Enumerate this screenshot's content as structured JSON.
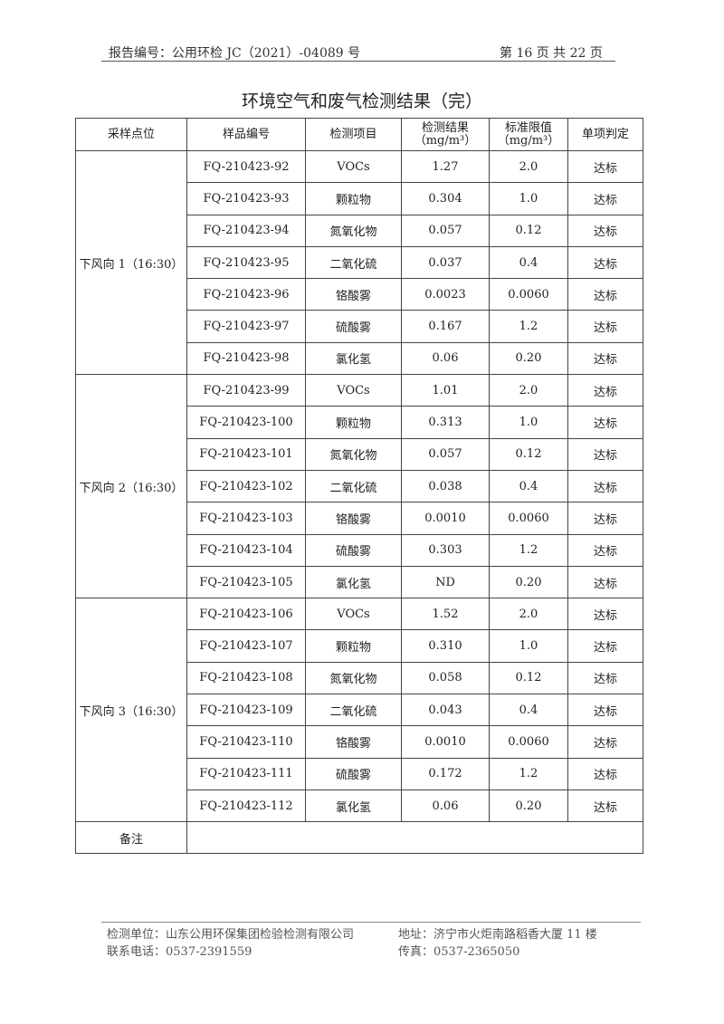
{
  "header": {
    "report_no": "报告编号：公用环检 JC（2021）-04089 号",
    "page": "第 16 页 共 22 页"
  },
  "title": "环境空气和废气检测结果（完）",
  "table": {
    "columns": [
      "采样点位",
      "样品编号",
      "检测项目",
      "检测结果",
      "（mg/m³）",
      "标准限值",
      "（mg/m³）",
      "单项判定"
    ],
    "groups": [
      {
        "location": "下风向 1（16:30）",
        "rows": [
          [
            "FQ-210423-92",
            "VOCs",
            "1.27",
            "2.0",
            "达标"
          ],
          [
            "FQ-210423-93",
            "颗粒物",
            "0.304",
            "1.0",
            "达标"
          ],
          [
            "FQ-210423-94",
            "氮氧化物",
            "0.057",
            "0.12",
            "达标"
          ],
          [
            "FQ-210423-95",
            "二氧化硫",
            "0.037",
            "0.4",
            "达标"
          ],
          [
            "FQ-210423-96",
            "铬酸雾",
            "0.0023",
            "0.0060",
            "达标"
          ],
          [
            "FQ-210423-97",
            "硫酸雾",
            "0.167",
            "1.2",
            "达标"
          ],
          [
            "FQ-210423-98",
            "氯化氢",
            "0.06",
            "0.20",
            "达标"
          ]
        ]
      },
      {
        "location": "下风向 2（16:30）",
        "rows": [
          [
            "FQ-210423-99",
            "VOCs",
            "1.01",
            "2.0",
            "达标"
          ],
          [
            "FQ-210423-100",
            "颗粒物",
            "0.313",
            "1.0",
            "达标"
          ],
          [
            "FQ-210423-101",
            "氮氧化物",
            "0.057",
            "0.12",
            "达标"
          ],
          [
            "FQ-210423-102",
            "二氧化硫",
            "0.038",
            "0.4",
            "达标"
          ],
          [
            "FQ-210423-103",
            "铬酸雾",
            "0.0010",
            "0.0060",
            "达标"
          ],
          [
            "FQ-210423-104",
            "硫酸雾",
            "0.303",
            "1.2",
            "达标"
          ],
          [
            "FQ-210423-105",
            "氯化氢",
            "ND",
            "0.20",
            "达标"
          ]
        ]
      },
      {
        "location": "下风向 3（16:30）",
        "rows": [
          [
            "FQ-210423-106",
            "VOCs",
            "1.52",
            "2.0",
            "达标"
          ],
          [
            "FQ-210423-107",
            "颗粒物",
            "0.310",
            "1.0",
            "达标"
          ],
          [
            "FQ-210423-108",
            "氮氧化物",
            "0.058",
            "0.12",
            "达标"
          ],
          [
            "FQ-210423-109",
            "二氧化硫",
            "0.043",
            "0.4",
            "达标"
          ],
          [
            "FQ-210423-110",
            "铬酸雾",
            "0.0010",
            "0.0060",
            "达标"
          ],
          [
            "FQ-210423-111",
            "硫酸雾",
            "0.172",
            "1.2",
            "达标"
          ],
          [
            "FQ-210423-112",
            "氯化氢",
            "0.06",
            "0.20",
            "达标"
          ]
        ]
      }
    ],
    "remark_label": "备注",
    "remark_value": ""
  },
  "footer": {
    "unit": "检测单位：山东公用环保集团检验检测有限公司",
    "address": "地址：济宁市火炬南路稻香大厦 11 楼",
    "phone": "联系电话：0537-2391559",
    "fax": "传真：0537-2365050"
  }
}
